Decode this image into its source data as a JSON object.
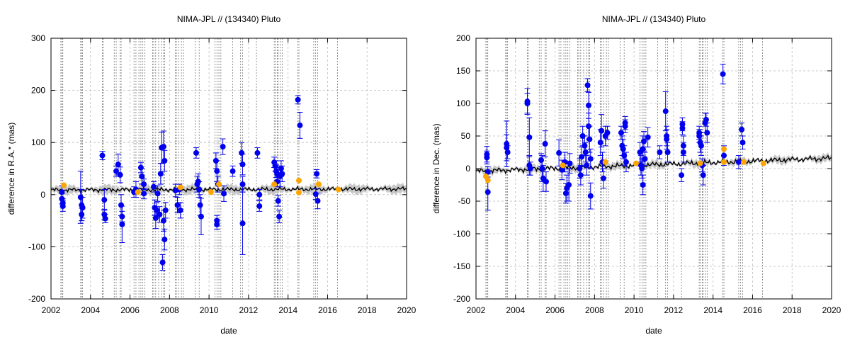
{
  "chart_data": [
    {
      "type": "scatter",
      "title": "NIMA-JPL // (134340) Pluto",
      "xlabel": "date",
      "ylabel": "difference in R.A.* (mas)",
      "xlim": [
        2002,
        2020
      ],
      "ylim": [
        -200,
        300
      ],
      "xticks": [
        2002,
        2004,
        2006,
        2008,
        2010,
        2012,
        2014,
        2016,
        2018,
        2020
      ],
      "yticks": [
        -200,
        -100,
        0,
        100,
        200,
        300
      ],
      "x_tick_labels": [
        "2002",
        "2004",
        "2006",
        "2008",
        "2010",
        "2012",
        "2014",
        "2016",
        "2018",
        "2020"
      ],
      "y_tick_labels": [
        "-200",
        "-100",
        "0",
        "100",
        "200",
        "300"
      ],
      "grid": true,
      "colors": {
        "observations": "#0000ee",
        "highlighted": "#ffa500",
        "model": "#000000",
        "uncertainty": "#c8c8c8"
      },
      "model_curve": {
        "start": [
          2002,
          9
        ],
        "end": [
          2020,
          11
        ],
        "uncertainty": 6
      },
      "observation_dates": [
        2002.5,
        2002.55,
        2002.6,
        2003.5,
        2003.55,
        2003.6,
        2004.6,
        2004.65,
        2005.2,
        2005.3,
        2005.5,
        2005.55,
        2006.2,
        2006.3,
        2006.45,
        2006.55,
        2006.65,
        2006.75,
        2007.15,
        2007.2,
        2007.3,
        2007.45,
        2007.6,
        2007.7,
        2007.75,
        2008.3,
        2008.35,
        2008.45,
        2008.6,
        2008.7,
        2009.3,
        2009.5,
        2010.3,
        2010.4,
        2010.5,
        2010.6,
        2011.2,
        2011.6,
        2011.7,
        2012.4,
        2013.3,
        2013.35,
        2013.45,
        2013.5,
        2013.6,
        2013.7,
        2014.5,
        2014.55,
        2015.3,
        2015.4,
        2015.5,
        2016.5
      ],
      "observations": [
        {
          "x": 2002.55,
          "y": 5,
          "err": 12
        },
        {
          "x": 2002.55,
          "y": -8,
          "err": 10
        },
        {
          "x": 2002.6,
          "y": -16,
          "err": 8
        },
        {
          "x": 2002.6,
          "y": -22,
          "err": 10
        },
        {
          "x": 2003.5,
          "y": -5,
          "err": 50
        },
        {
          "x": 2003.55,
          "y": -20,
          "err": 30
        },
        {
          "x": 2003.55,
          "y": -38,
          "err": 12
        },
        {
          "x": 2003.6,
          "y": -25,
          "err": 20
        },
        {
          "x": 2004.6,
          "y": 75,
          "err": 8
        },
        {
          "x": 2004.7,
          "y": -10,
          "err": 20
        },
        {
          "x": 2004.7,
          "y": -38,
          "err": 10
        },
        {
          "x": 2004.75,
          "y": -46,
          "err": 8
        },
        {
          "x": 2005.3,
          "y": 45,
          "err": 10
        },
        {
          "x": 2005.4,
          "y": 58,
          "err": 20
        },
        {
          "x": 2005.5,
          "y": 38,
          "err": 15
        },
        {
          "x": 2005.55,
          "y": -20,
          "err": 20
        },
        {
          "x": 2005.6,
          "y": -42,
          "err": 10
        },
        {
          "x": 2005.6,
          "y": -57,
          "err": 35
        },
        {
          "x": 2006.2,
          "y": 5,
          "err": 10
        },
        {
          "x": 2006.3,
          "y": 10,
          "err": 15
        },
        {
          "x": 2006.55,
          "y": 52,
          "err": 10
        },
        {
          "x": 2006.6,
          "y": 35,
          "err": 15
        },
        {
          "x": 2006.7,
          "y": 20,
          "err": 10
        },
        {
          "x": 2006.7,
          "y": 2,
          "err": 10
        },
        {
          "x": 2007.2,
          "y": 15,
          "err": 10
        },
        {
          "x": 2007.25,
          "y": -25,
          "err": 15
        },
        {
          "x": 2007.3,
          "y": -45,
          "err": 20
        },
        {
          "x": 2007.35,
          "y": -30,
          "err": 15
        },
        {
          "x": 2007.4,
          "y": 2,
          "err": 15
        },
        {
          "x": 2007.5,
          "y": -38,
          "err": 15
        },
        {
          "x": 2007.55,
          "y": 40,
          "err": 20
        },
        {
          "x": 2007.6,
          "y": 90,
          "err": 30
        },
        {
          "x": 2007.65,
          "y": -130,
          "err": 15
        },
        {
          "x": 2007.7,
          "y": 92,
          "err": 30
        },
        {
          "x": 2007.7,
          "y": -50,
          "err": 20
        },
        {
          "x": 2007.75,
          "y": 65,
          "err": 20
        },
        {
          "x": 2007.75,
          "y": -86,
          "err": 20
        },
        {
          "x": 2007.8,
          "y": -30,
          "err": 15
        },
        {
          "x": 2008.3,
          "y": 8,
          "err": 12
        },
        {
          "x": 2008.4,
          "y": -20,
          "err": 15
        },
        {
          "x": 2008.5,
          "y": 10,
          "err": 10
        },
        {
          "x": 2008.55,
          "y": -30,
          "err": 15
        },
        {
          "x": 2009.35,
          "y": 80,
          "err": 10
        },
        {
          "x": 2009.4,
          "y": 20,
          "err": 15
        },
        {
          "x": 2009.45,
          "y": 25,
          "err": 15
        },
        {
          "x": 2009.5,
          "y": 10,
          "err": 15
        },
        {
          "x": 2009.55,
          "y": -20,
          "err": 20
        },
        {
          "x": 2009.6,
          "y": -42,
          "err": 35
        },
        {
          "x": 2010.35,
          "y": 65,
          "err": 15
        },
        {
          "x": 2010.4,
          "y": 45,
          "err": 20
        },
        {
          "x": 2010.45,
          "y": 20,
          "err": 15
        },
        {
          "x": 2010.4,
          "y": -50,
          "err": 10
        },
        {
          "x": 2010.4,
          "y": -57,
          "err": 10
        },
        {
          "x": 2010.7,
          "y": 92,
          "err": 15
        },
        {
          "x": 2010.75,
          "y": 2,
          "err": 15
        },
        {
          "x": 2011.2,
          "y": 45,
          "err": 10
        },
        {
          "x": 2011.65,
          "y": 80,
          "err": 20
        },
        {
          "x": 2011.7,
          "y": 58,
          "err": 20
        },
        {
          "x": 2011.7,
          "y": 20,
          "err": 15
        },
        {
          "x": 2011.7,
          "y": -55,
          "err": 60
        },
        {
          "x": 2012.45,
          "y": 80,
          "err": 10
        },
        {
          "x": 2012.55,
          "y": -22,
          "err": 10
        },
        {
          "x": 2012.55,
          "y": 0,
          "err": 10
        },
        {
          "x": 2013.3,
          "y": 62,
          "err": 10
        },
        {
          "x": 2013.35,
          "y": 55,
          "err": 10
        },
        {
          "x": 2013.4,
          "y": 45,
          "err": 12
        },
        {
          "x": 2013.45,
          "y": 40,
          "err": 12
        },
        {
          "x": 2013.45,
          "y": 25,
          "err": 10
        },
        {
          "x": 2013.5,
          "y": -12,
          "err": 10
        },
        {
          "x": 2013.55,
          "y": -42,
          "err": 12
        },
        {
          "x": 2013.6,
          "y": 35,
          "err": 20
        },
        {
          "x": 2013.65,
          "y": 50,
          "err": 15
        },
        {
          "x": 2013.7,
          "y": 40,
          "err": 15
        },
        {
          "x": 2014.5,
          "y": 182,
          "err": 8
        },
        {
          "x": 2014.6,
          "y": 133,
          "err": 25
        },
        {
          "x": 2015.4,
          "y": 1,
          "err": 10
        },
        {
          "x": 2015.5,
          "y": -12,
          "err": 15
        },
        {
          "x": 2015.45,
          "y": 40,
          "err": 8
        }
      ],
      "highlighted": [
        {
          "x": 2002.65,
          "y": 18
        },
        {
          "x": 2006.4,
          "y": 5
        },
        {
          "x": 2008.55,
          "y": 14
        },
        {
          "x": 2010.1,
          "y": 5
        },
        {
          "x": 2010.5,
          "y": 20
        },
        {
          "x": 2013.3,
          "y": 20
        },
        {
          "x": 2014.55,
          "y": 27
        },
        {
          "x": 2014.55,
          "y": 4
        },
        {
          "x": 2015.55,
          "y": 20
        },
        {
          "x": 2016.55,
          "y": 10
        }
      ]
    },
    {
      "type": "scatter",
      "title": "NIMA-JPL // (134340) Pluto",
      "xlabel": "date",
      "ylabel": "difference in Dec. (mas)",
      "xlim": [
        2002,
        2020
      ],
      "ylim": [
        -200,
        200
      ],
      "xticks": [
        2002,
        2004,
        2006,
        2008,
        2010,
        2012,
        2014,
        2016,
        2018,
        2020
      ],
      "yticks": [
        -200,
        -150,
        -100,
        -50,
        0,
        50,
        100,
        150,
        200
      ],
      "x_tick_labels": [
        "2002",
        "2004",
        "2006",
        "2008",
        "2010",
        "2012",
        "2014",
        "2016",
        "2018",
        "2020"
      ],
      "y_tick_labels": [
        "-200",
        "-150",
        "-100",
        "-50",
        "0",
        "50",
        "100",
        "150",
        "200"
      ],
      "grid": true,
      "colors": {
        "observations": "#0000ee",
        "highlighted": "#ffa500",
        "model": "#000000",
        "uncertainty": "#c8c8c8"
      },
      "model_curve": {
        "start": [
          2002,
          -4
        ],
        "end": [
          2020,
          16
        ],
        "uncertainty": 4
      },
      "observation_dates": [
        2002.5,
        2002.55,
        2002.6,
        2003.5,
        2003.55,
        2003.6,
        2004.6,
        2004.65,
        2005.2,
        2005.3,
        2005.5,
        2005.55,
        2006.2,
        2006.3,
        2006.45,
        2006.55,
        2006.65,
        2006.75,
        2007.15,
        2007.2,
        2007.3,
        2007.45,
        2007.6,
        2007.7,
        2007.75,
        2008.3,
        2008.35,
        2008.45,
        2008.6,
        2008.7,
        2009.3,
        2009.5,
        2010.3,
        2010.4,
        2010.5,
        2010.6,
        2011.2,
        2011.6,
        2011.7,
        2012.4,
        2013.3,
        2013.35,
        2013.45,
        2013.5,
        2013.6,
        2013.7,
        2014.5,
        2014.55,
        2015.3,
        2015.4,
        2015.5,
        2016.5
      ],
      "observations": [
        {
          "x": 2002.55,
          "y": 22,
          "err": 12
        },
        {
          "x": 2002.55,
          "y": 17,
          "err": 10
        },
        {
          "x": 2002.6,
          "y": -5,
          "err": 8
        },
        {
          "x": 2002.6,
          "y": -36,
          "err": 28
        },
        {
          "x": 2003.55,
          "y": 38,
          "err": 35
        },
        {
          "x": 2003.55,
          "y": 32,
          "err": 20
        },
        {
          "x": 2003.6,
          "y": 25,
          "err": 10
        },
        {
          "x": 2004.6,
          "y": 103,
          "err": 20
        },
        {
          "x": 2004.6,
          "y": 100,
          "err": 15
        },
        {
          "x": 2004.7,
          "y": 48,
          "err": 30
        },
        {
          "x": 2004.7,
          "y": 5,
          "err": 15
        },
        {
          "x": 2004.75,
          "y": 0,
          "err": 10
        },
        {
          "x": 2005.3,
          "y": 13,
          "err": 10
        },
        {
          "x": 2005.35,
          "y": 0,
          "err": 20
        },
        {
          "x": 2005.4,
          "y": -15,
          "err": 20
        },
        {
          "x": 2005.5,
          "y": 38,
          "err": 20
        },
        {
          "x": 2005.55,
          "y": -20,
          "err": 15
        },
        {
          "x": 2006.2,
          "y": 24,
          "err": 20
        },
        {
          "x": 2006.35,
          "y": -2,
          "err": 15
        },
        {
          "x": 2006.5,
          "y": 10,
          "err": 15
        },
        {
          "x": 2006.55,
          "y": -38,
          "err": 15
        },
        {
          "x": 2006.6,
          "y": -30,
          "err": 20
        },
        {
          "x": 2006.7,
          "y": -25,
          "err": 25
        },
        {
          "x": 2006.75,
          "y": 8,
          "err": 15
        },
        {
          "x": 2007.25,
          "y": 0,
          "err": 15
        },
        {
          "x": 2007.3,
          "y": -10,
          "err": 15
        },
        {
          "x": 2007.35,
          "y": 18,
          "err": 15
        },
        {
          "x": 2007.4,
          "y": 50,
          "err": 15
        },
        {
          "x": 2007.5,
          "y": 35,
          "err": 15
        },
        {
          "x": 2007.55,
          "y": 25,
          "err": 15
        },
        {
          "x": 2007.6,
          "y": 5,
          "err": 15
        },
        {
          "x": 2007.65,
          "y": 128,
          "err": 10
        },
        {
          "x": 2007.7,
          "y": 97,
          "err": 20
        },
        {
          "x": 2007.7,
          "y": 65,
          "err": 20
        },
        {
          "x": 2007.75,
          "y": 45,
          "err": 20
        },
        {
          "x": 2007.8,
          "y": -42,
          "err": 20
        },
        {
          "x": 2007.8,
          "y": 15,
          "err": 15
        },
        {
          "x": 2008.3,
          "y": 40,
          "err": 20
        },
        {
          "x": 2008.35,
          "y": 58,
          "err": 25
        },
        {
          "x": 2008.4,
          "y": 10,
          "err": 15
        },
        {
          "x": 2008.45,
          "y": -15,
          "err": 15
        },
        {
          "x": 2008.55,
          "y": 50,
          "err": 15
        },
        {
          "x": 2008.65,
          "y": 55,
          "err": 10
        },
        {
          "x": 2009.35,
          "y": 55,
          "err": 10
        },
        {
          "x": 2009.4,
          "y": 35,
          "err": 15
        },
        {
          "x": 2009.45,
          "y": 30,
          "err": 15
        },
        {
          "x": 2009.5,
          "y": 20,
          "err": 15
        },
        {
          "x": 2009.55,
          "y": 70,
          "err": 10
        },
        {
          "x": 2009.55,
          "y": 65,
          "err": 10
        },
        {
          "x": 2009.6,
          "y": 10,
          "err": 15
        },
        {
          "x": 2010.3,
          "y": 25,
          "err": 15
        },
        {
          "x": 2010.35,
          "y": 5,
          "err": 15
        },
        {
          "x": 2010.4,
          "y": 0,
          "err": 15
        },
        {
          "x": 2010.45,
          "y": -25,
          "err": 15
        },
        {
          "x": 2010.45,
          "y": 30,
          "err": 20
        },
        {
          "x": 2010.5,
          "y": 42,
          "err": 15
        },
        {
          "x": 2010.55,
          "y": 15,
          "err": 10
        },
        {
          "x": 2010.7,
          "y": 48,
          "err": 15
        },
        {
          "x": 2011.3,
          "y": 25,
          "err": 10
        },
        {
          "x": 2011.6,
          "y": 88,
          "err": 30
        },
        {
          "x": 2011.65,
          "y": 50,
          "err": 15
        },
        {
          "x": 2011.65,
          "y": 45,
          "err": 15
        },
        {
          "x": 2011.7,
          "y": 25,
          "err": 15
        },
        {
          "x": 2012.45,
          "y": 68,
          "err": 10
        },
        {
          "x": 2012.45,
          "y": 62,
          "err": 10
        },
        {
          "x": 2012.5,
          "y": 35,
          "err": 15
        },
        {
          "x": 2012.5,
          "y": 25,
          "err": 15
        },
        {
          "x": 2012.4,
          "y": -10,
          "err": 10
        },
        {
          "x": 2013.3,
          "y": 55,
          "err": 10
        },
        {
          "x": 2013.3,
          "y": 50,
          "err": 10
        },
        {
          "x": 2013.35,
          "y": 40,
          "err": 15
        },
        {
          "x": 2013.4,
          "y": 35,
          "err": 15
        },
        {
          "x": 2013.45,
          "y": 5,
          "err": 10
        },
        {
          "x": 2013.5,
          "y": -10,
          "err": 15
        },
        {
          "x": 2013.6,
          "y": 70,
          "err": 15
        },
        {
          "x": 2013.65,
          "y": 75,
          "err": 10
        },
        {
          "x": 2013.7,
          "y": 55,
          "err": 15
        },
        {
          "x": 2014.5,
          "y": 145,
          "err": 15
        },
        {
          "x": 2014.55,
          "y": 20,
          "err": 15
        },
        {
          "x": 2015.3,
          "y": 10,
          "err": 10
        },
        {
          "x": 2015.45,
          "y": 60,
          "err": 10
        },
        {
          "x": 2015.5,
          "y": 40,
          "err": 10
        }
      ],
      "highlighted": [
        {
          "x": 2002.5,
          "y": -12
        },
        {
          "x": 2002.6,
          "y": -18
        },
        {
          "x": 2006.4,
          "y": 5
        },
        {
          "x": 2008.55,
          "y": 10
        },
        {
          "x": 2010.1,
          "y": 8
        },
        {
          "x": 2013.35,
          "y": 8
        },
        {
          "x": 2014.55,
          "y": 30
        },
        {
          "x": 2014.55,
          "y": 10
        },
        {
          "x": 2015.55,
          "y": 10
        },
        {
          "x": 2016.55,
          "y": 8
        }
      ]
    }
  ]
}
